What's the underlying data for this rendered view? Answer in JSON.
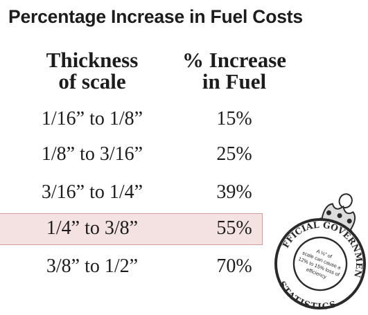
{
  "chart_data": {
    "type": "table",
    "title": "Percentage Increase in Fuel Costs",
    "columns": [
      [
        "Thickness",
        "of scale"
      ],
      [
        "% Increase",
        "in Fuel"
      ]
    ],
    "rows": [
      {
        "range": "1/16” to 1/8”",
        "increase": "15%"
      },
      {
        "range": "1/8” to 3/16”",
        "increase": "25%"
      },
      {
        "range": "3/16” to 1/4”",
        "increase": "39%"
      },
      {
        "range": "1/4” to 3/8”",
        "increase": "55%",
        "highlighted": true
      },
      {
        "range": "3/8” to 1/2”",
        "increase": "70%"
      }
    ]
  },
  "stamp": {
    "outer_top": "OFFICIAL GOVERNMENT",
    "outer_bottom": "STATISTICS",
    "inner_lines": [
      "A ⅛” of",
      "scale can cause a",
      "12% to 15% loss of",
      "efficiency"
    ]
  },
  "colors": {
    "highlight_fill": "#f4e2e2",
    "highlight_border": "#d59a9a",
    "text": "#1c1c1c"
  }
}
